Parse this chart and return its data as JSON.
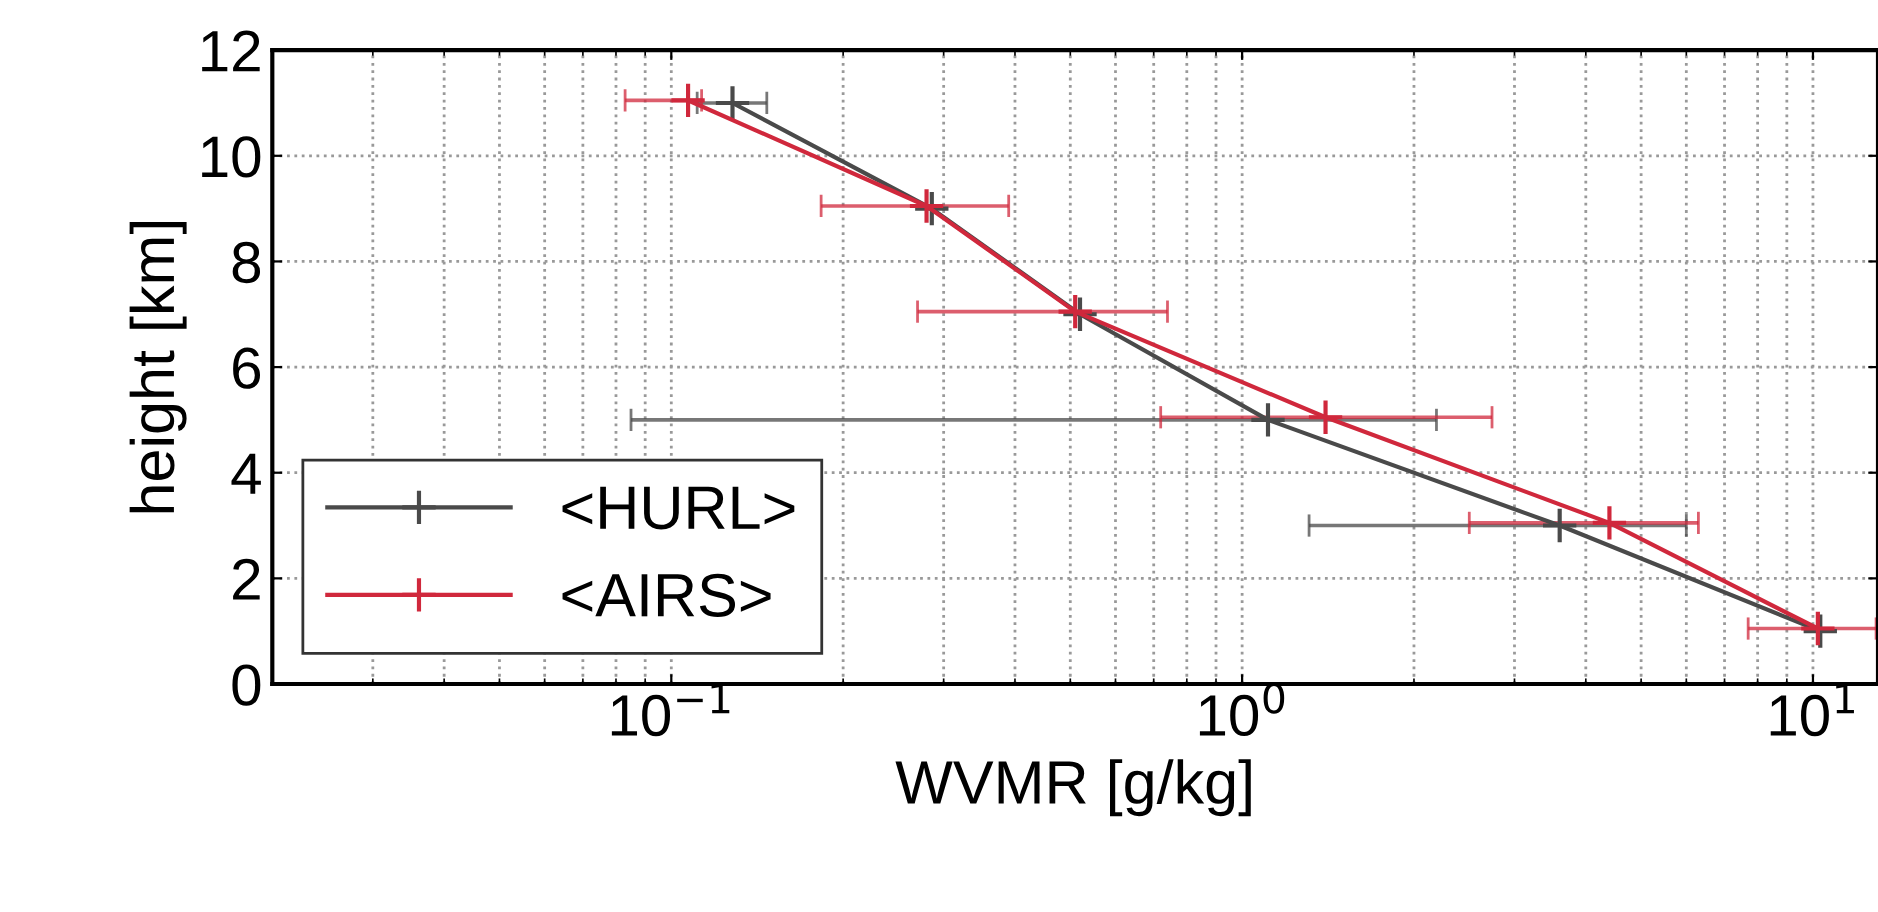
{
  "chart_data": {
    "type": "line",
    "xlabel": "WVMR [g/kg]",
    "ylabel": "height [km]",
    "log": "x",
    "xlim": [
      0.02,
      13
    ],
    "xticks": [
      {
        "value": 0.1,
        "label": "10$^{−1}$"
      },
      {
        "value": 1,
        "label": "10$^{0}$"
      },
      {
        "value": 10,
        "label": "10$^{1}$"
      }
    ],
    "ylim": [
      0,
      12
    ],
    "yticks": [
      0,
      2,
      4,
      6,
      8,
      10,
      12
    ],
    "grid": true,
    "legend": "bottom left",
    "marker": "cross",
    "line_style": "solid",
    "series": [
      {
        "name": "<HURL>",
        "color": "#4a4a4a",
        "x": [
          10.3,
          3.6,
          1.11,
          0.52,
          0.286,
          0.128
        ],
        "values": [
          1,
          3,
          5,
          7,
          9,
          11
        ],
        "xerrors": [
          null,
          [
            1.31,
            6.0
          ],
          [
            0.085,
            2.19
          ],
          null,
          null,
          [
            0.111,
            0.147
          ]
        ]
      },
      {
        "name": "<AIRS>",
        "color": "#d0283c",
        "x": [
          10.2,
          4.4,
          1.4,
          0.51,
          0.28,
          0.107
        ],
        "values": [
          1.05,
          3.05,
          5.05,
          7.05,
          9.05,
          11.05
        ],
        "xerrors": [
          [
            7.7,
            12.9
          ],
          [
            2.5,
            6.3
          ],
          [
            0.72,
            2.74
          ],
          [
            0.27,
            0.74
          ],
          [
            0.183,
            0.39
          ],
          [
            0.083,
            0.113
          ]
        ]
      }
    ]
  }
}
